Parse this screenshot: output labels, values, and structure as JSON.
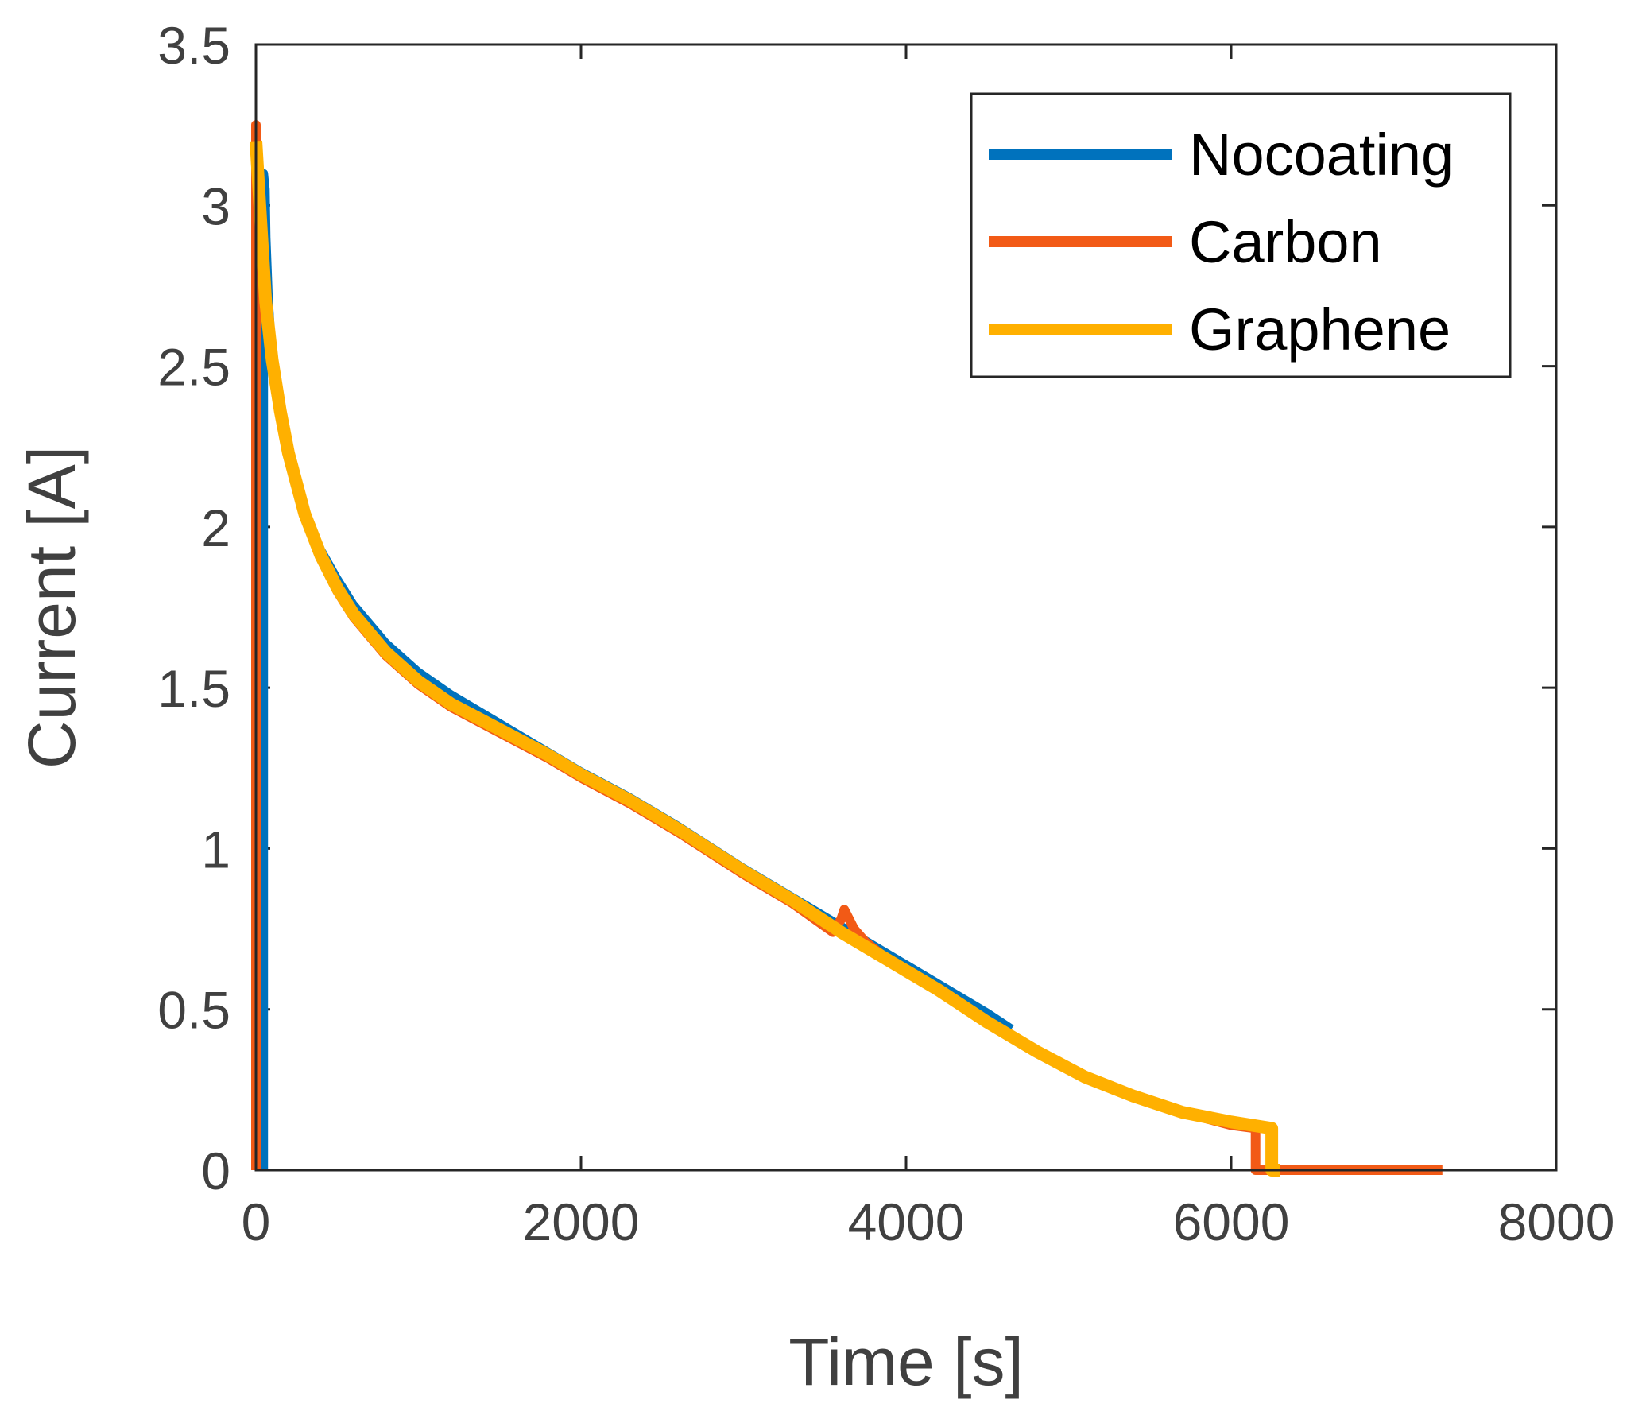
{
  "chart_data": {
    "type": "line",
    "title": "",
    "xlabel": "Time [s]",
    "ylabel": "Current [A]",
    "xlim": [
      0,
      8000
    ],
    "ylim": [
      0,
      3.5
    ],
    "xticks": [
      0,
      2000,
      4000,
      6000,
      8000
    ],
    "xtick_labels": [
      "0",
      "2000",
      "4000",
      "6000",
      "8000"
    ],
    "yticks": [
      0,
      0.5,
      1,
      1.5,
      2,
      2.5,
      3,
      3.5
    ],
    "ytick_labels": [
      "0",
      "0.5",
      "1",
      "1.5",
      "2",
      "2.5",
      "3",
      "3.5"
    ],
    "grid": false,
    "legend_position": "top-right",
    "series": [
      {
        "name": "Nocoating",
        "color": "#0072BD",
        "x": [
          50,
          50,
          60,
          65,
          80,
          100,
          150,
          200,
          300,
          400,
          500,
          600,
          800,
          1000,
          1200,
          1500,
          1800,
          2000,
          2300,
          2600,
          3000,
          3300,
          3600,
          3900,
          4200,
          4500,
          4650
        ],
        "y": [
          0,
          3.1,
          3.05,
          2.9,
          2.7,
          2.55,
          2.35,
          2.22,
          2.05,
          1.93,
          1.84,
          1.76,
          1.64,
          1.55,
          1.48,
          1.39,
          1.3,
          1.24,
          1.16,
          1.07,
          0.94,
          0.85,
          0.76,
          0.67,
          0.58,
          0.49,
          0.44
        ]
      },
      {
        "name": "Carbon",
        "color": "#F25A16",
        "x": [
          0,
          0,
          30,
          60,
          100,
          150,
          200,
          300,
          400,
          500,
          600,
          800,
          1000,
          1200,
          1500,
          1800,
          2000,
          2300,
          2600,
          3000,
          3300,
          3550,
          3600,
          3620,
          3680,
          3750,
          3900,
          4200,
          4500,
          4800,
          5100,
          5400,
          5700,
          6000,
          6150,
          6150,
          6600,
          7300
        ],
        "y": [
          0,
          3.25,
          2.95,
          2.7,
          2.52,
          2.35,
          2.22,
          2.03,
          1.9,
          1.8,
          1.72,
          1.6,
          1.51,
          1.44,
          1.36,
          1.28,
          1.22,
          1.14,
          1.05,
          0.92,
          0.83,
          0.74,
          0.78,
          0.81,
          0.75,
          0.71,
          0.65,
          0.56,
          0.46,
          0.37,
          0.29,
          0.23,
          0.18,
          0.14,
          0.13,
          0,
          0,
          0
        ]
      },
      {
        "name": "Graphene",
        "color": "#FFB000",
        "x": [
          0,
          30,
          60,
          100,
          150,
          200,
          300,
          400,
          500,
          600,
          800,
          1000,
          1200,
          1500,
          1800,
          2000,
          2300,
          2600,
          3000,
          3300,
          3600,
          3900,
          4200,
          4500,
          4800,
          5100,
          5400,
          5700,
          6000,
          6250,
          6250,
          6300
        ],
        "y": [
          3.2,
          2.95,
          2.7,
          2.52,
          2.36,
          2.23,
          2.04,
          1.91,
          1.81,
          1.73,
          1.61,
          1.52,
          1.45,
          1.37,
          1.29,
          1.23,
          1.15,
          1.06,
          0.93,
          0.84,
          0.74,
          0.65,
          0.56,
          0.46,
          0.37,
          0.29,
          0.23,
          0.18,
          0.15,
          0.13,
          0,
          0
        ]
      }
    ]
  }
}
